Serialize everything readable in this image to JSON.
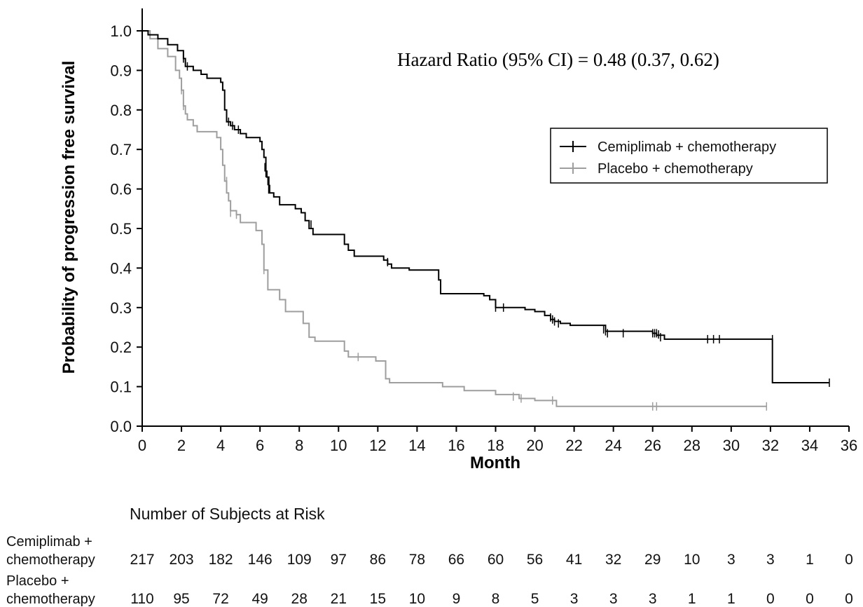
{
  "chart_data": {
    "type": "line",
    "ylabel": "Probability of progression free survival",
    "xlabel": "Month",
    "annotation": "Hazard Ratio (95% CI) = 0.48 (0.37, 0.62)",
    "xlim": [
      0,
      36
    ],
    "ylim": [
      0,
      1.0
    ],
    "x_ticks": [
      "0",
      "2",
      "4",
      "6",
      "8",
      "10",
      "12",
      "14",
      "16",
      "18",
      "20",
      "22",
      "24",
      "26",
      "28",
      "30",
      "32",
      "34",
      "36"
    ],
    "y_ticks": [
      "0.0",
      "0.1",
      "0.2",
      "0.3",
      "0.4",
      "0.5",
      "0.6",
      "0.7",
      "0.8",
      "0.9",
      "1.0"
    ],
    "legend_position": "upper-right",
    "series": [
      {
        "name": "Cemiplimab + chemotherapy",
        "color": "#000000",
        "steps": [
          [
            0,
            1.0
          ],
          [
            0.3,
            0.99
          ],
          [
            0.8,
            0.98
          ],
          [
            1.3,
            0.965
          ],
          [
            1.8,
            0.95
          ],
          [
            2.1,
            0.93
          ],
          [
            2.2,
            0.91
          ],
          [
            2.6,
            0.9
          ],
          [
            3.0,
            0.89
          ],
          [
            3.3,
            0.88
          ],
          [
            4.0,
            0.87
          ],
          [
            4.1,
            0.85
          ],
          [
            4.2,
            0.8
          ],
          [
            4.3,
            0.77
          ],
          [
            4.5,
            0.76
          ],
          [
            4.7,
            0.75
          ],
          [
            5.0,
            0.74
          ],
          [
            5.3,
            0.73
          ],
          [
            6.0,
            0.72
          ],
          [
            6.1,
            0.7
          ],
          [
            6.2,
            0.68
          ],
          [
            6.3,
            0.645
          ],
          [
            6.35,
            0.63
          ],
          [
            6.45,
            0.59
          ],
          [
            6.7,
            0.58
          ],
          [
            7.0,
            0.56
          ],
          [
            7.8,
            0.55
          ],
          [
            8.1,
            0.54
          ],
          [
            8.3,
            0.52
          ],
          [
            8.5,
            0.5
          ],
          [
            8.7,
            0.485
          ],
          [
            10.3,
            0.46
          ],
          [
            10.5,
            0.445
          ],
          [
            10.8,
            0.43
          ],
          [
            12.3,
            0.42
          ],
          [
            12.5,
            0.41
          ],
          [
            12.7,
            0.4
          ],
          [
            13.6,
            0.395
          ],
          [
            15.1,
            0.37
          ],
          [
            15.2,
            0.335
          ],
          [
            17.4,
            0.33
          ],
          [
            17.7,
            0.32
          ],
          [
            18.0,
            0.3
          ],
          [
            19.5,
            0.295
          ],
          [
            20.0,
            0.29
          ],
          [
            20.5,
            0.28
          ],
          [
            20.8,
            0.27
          ],
          [
            21.0,
            0.265
          ],
          [
            21.3,
            0.26
          ],
          [
            21.8,
            0.255
          ],
          [
            23.6,
            0.24
          ],
          [
            26.0,
            0.235
          ],
          [
            26.2,
            0.23
          ],
          [
            26.6,
            0.22
          ],
          [
            32.1,
            0.11
          ],
          [
            35.0,
            0.11
          ]
        ],
        "censors": [
          [
            2.1,
            0.93
          ],
          [
            2.2,
            0.92
          ],
          [
            2.3,
            0.91
          ],
          [
            4.3,
            0.78
          ],
          [
            4.4,
            0.77
          ],
          [
            4.6,
            0.76
          ],
          [
            4.9,
            0.75
          ],
          [
            6.25,
            0.655
          ],
          [
            6.3,
            0.64
          ],
          [
            6.4,
            0.62
          ],
          [
            6.5,
            0.6
          ],
          [
            8.3,
            0.53
          ],
          [
            8.6,
            0.51
          ],
          [
            12.5,
            0.415
          ],
          [
            18.0,
            0.3
          ],
          [
            18.4,
            0.3
          ],
          [
            20.8,
            0.275
          ],
          [
            20.9,
            0.27
          ],
          [
            21.0,
            0.265
          ],
          [
            21.2,
            0.26
          ],
          [
            23.5,
            0.245
          ],
          [
            23.6,
            0.24
          ],
          [
            23.7,
            0.235
          ],
          [
            24.5,
            0.235
          ],
          [
            26.0,
            0.235
          ],
          [
            26.1,
            0.235
          ],
          [
            26.2,
            0.235
          ],
          [
            26.3,
            0.232
          ],
          [
            26.4,
            0.225
          ],
          [
            28.8,
            0.22
          ],
          [
            29.1,
            0.22
          ],
          [
            29.4,
            0.22
          ],
          [
            32.1,
            0.22
          ],
          [
            35.0,
            0.11
          ]
        ]
      },
      {
        "name": "Placebo + chemotherapy",
        "color": "#9e9e9e",
        "steps": [
          [
            0,
            1.0
          ],
          [
            0.4,
            0.98
          ],
          [
            0.8,
            0.955
          ],
          [
            1.3,
            0.935
          ],
          [
            1.7,
            0.9
          ],
          [
            1.9,
            0.88
          ],
          [
            2.0,
            0.85
          ],
          [
            2.1,
            0.81
          ],
          [
            2.2,
            0.79
          ],
          [
            2.3,
            0.775
          ],
          [
            2.6,
            0.76
          ],
          [
            2.8,
            0.745
          ],
          [
            3.8,
            0.73
          ],
          [
            4.0,
            0.7
          ],
          [
            4.1,
            0.66
          ],
          [
            4.2,
            0.62
          ],
          [
            4.3,
            0.59
          ],
          [
            4.4,
            0.57
          ],
          [
            4.5,
            0.545
          ],
          [
            4.8,
            0.535
          ],
          [
            5.0,
            0.515
          ],
          [
            5.8,
            0.495
          ],
          [
            6.1,
            0.46
          ],
          [
            6.2,
            0.395
          ],
          [
            6.4,
            0.345
          ],
          [
            7.0,
            0.32
          ],
          [
            7.3,
            0.29
          ],
          [
            8.2,
            0.26
          ],
          [
            8.5,
            0.225
          ],
          [
            8.8,
            0.215
          ],
          [
            10.3,
            0.19
          ],
          [
            10.5,
            0.175
          ],
          [
            11.9,
            0.165
          ],
          [
            12.4,
            0.12
          ],
          [
            12.6,
            0.11
          ],
          [
            15.3,
            0.1
          ],
          [
            16.4,
            0.09
          ],
          [
            18.0,
            0.08
          ],
          [
            19.2,
            0.07
          ],
          [
            20.0,
            0.065
          ],
          [
            21.1,
            0.05
          ],
          [
            31.8,
            0.05
          ]
        ],
        "censors": [
          [
            2.0,
            0.85
          ],
          [
            2.1,
            0.81
          ],
          [
            4.3,
            0.62
          ],
          [
            4.5,
            0.54
          ],
          [
            4.8,
            0.535
          ],
          [
            6.2,
            0.395
          ],
          [
            11.0,
            0.175
          ],
          [
            18.9,
            0.075
          ],
          [
            19.3,
            0.07
          ],
          [
            20.9,
            0.065
          ],
          [
            26.0,
            0.05
          ],
          [
            26.2,
            0.05
          ],
          [
            31.8,
            0.05
          ]
        ]
      }
    ]
  },
  "risk_table": {
    "title": "Number of Subjects at Risk",
    "rows": [
      {
        "label_line1": "Cemiplimab +",
        "label_line2": "chemotherapy",
        "values": [
          "217",
          "203",
          "182",
          "146",
          "109",
          "97",
          "86",
          "78",
          "66",
          "60",
          "56",
          "41",
          "32",
          "29",
          "10",
          "3",
          "3",
          "1",
          "0"
        ]
      },
      {
        "label_line1": "Placebo +",
        "label_line2": "chemotherapy",
        "values": [
          "110",
          "95",
          "72",
          "49",
          "28",
          "21",
          "15",
          "10",
          "9",
          "8",
          "5",
          "3",
          "3",
          "3",
          "1",
          "1",
          "0",
          "0",
          "0"
        ]
      }
    ]
  }
}
